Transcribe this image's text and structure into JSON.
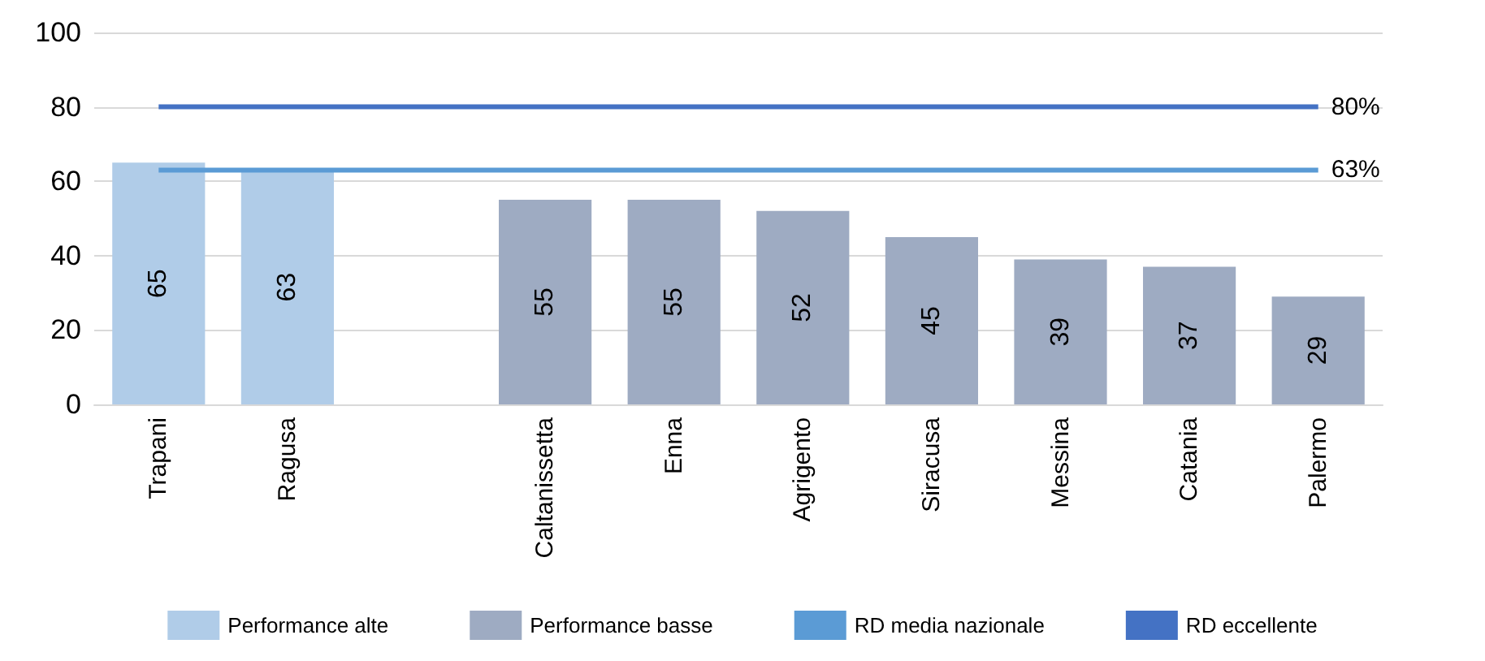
{
  "chart_data": {
    "type": "bar",
    "categories": [
      "Trapani",
      "Ragusa",
      null,
      "Caltanissetta",
      "Enna",
      "Agrigento",
      "Siracusa",
      "Messina",
      "Catania",
      "Palermo"
    ],
    "series": [
      {
        "name": "Performance alte",
        "color": "#b0cce8",
        "values": [
          65,
          63,
          null,
          null,
          null,
          null,
          null,
          null,
          null,
          null
        ]
      },
      {
        "name": "Performance basse",
        "color": "#9eabc2",
        "values": [
          null,
          null,
          null,
          55,
          55,
          52,
          45,
          39,
          37,
          29
        ]
      },
      {
        "name": "RD media nazionale",
        "type": "line",
        "color": "#5b9bd5",
        "values": [
          63,
          63,
          63,
          63,
          63,
          63,
          63,
          63,
          63,
          63
        ],
        "value_labels": [
          null,
          null,
          null,
          null,
          null,
          null,
          null,
          null,
          null,
          "63%"
        ]
      },
      {
        "name": "RD eccellente",
        "type": "line",
        "color": "#4472c4",
        "values": [
          80,
          80,
          80,
          80,
          80,
          80,
          80,
          80,
          80,
          80
        ],
        "value_labels": [
          null,
          null,
          null,
          null,
          null,
          null,
          null,
          null,
          null,
          "80%"
        ]
      }
    ],
    "ylim": [
      0,
      100
    ],
    "yticks": [
      0,
      20,
      40,
      60,
      80,
      100
    ],
    "grid": "y",
    "legend": "bottom",
    "data_labels": true
  }
}
